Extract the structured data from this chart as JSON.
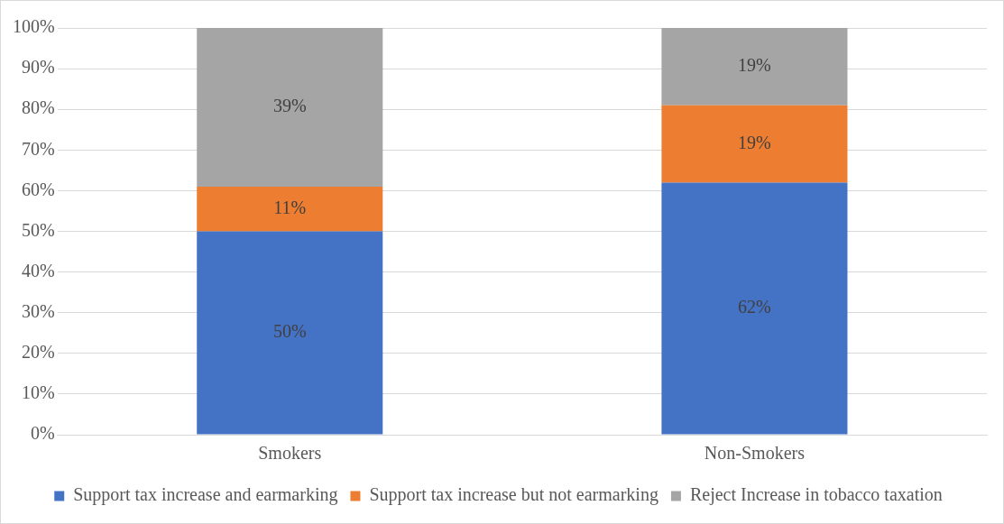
{
  "chart_data": {
    "type": "bar",
    "stacked": true,
    "categories": [
      "Smokers",
      "Non-Smokers"
    ],
    "series": [
      {
        "name": "Support tax increase and earmarking",
        "color": "#4472c4",
        "values": [
          50,
          62
        ],
        "value_labels": [
          "50%",
          "62%"
        ]
      },
      {
        "name": "Support tax increase but not earmarking",
        "color": "#ed7d31",
        "values": [
          11,
          19
        ],
        "value_labels": [
          "11%",
          "19%"
        ]
      },
      {
        "name": "Reject Increase in tobacco taxation",
        "color": "#a5a5a5",
        "values": [
          39,
          19
        ],
        "value_labels": [
          "39%",
          "19%"
        ]
      }
    ],
    "ylim": [
      0,
      100
    ],
    "yticks": [
      {
        "value": 0,
        "label": "0%"
      },
      {
        "value": 10,
        "label": "10%"
      },
      {
        "value": 20,
        "label": "20%"
      },
      {
        "value": 30,
        "label": "30%"
      },
      {
        "value": 40,
        "label": "40%"
      },
      {
        "value": 50,
        "label": "50%"
      },
      {
        "value": 60,
        "label": "60%"
      },
      {
        "value": 70,
        "label": "70%"
      },
      {
        "value": 80,
        "label": "80%"
      },
      {
        "value": 90,
        "label": "90%"
      },
      {
        "value": 100,
        "label": "100%"
      }
    ],
    "grid": "y",
    "legend": "bottom"
  }
}
